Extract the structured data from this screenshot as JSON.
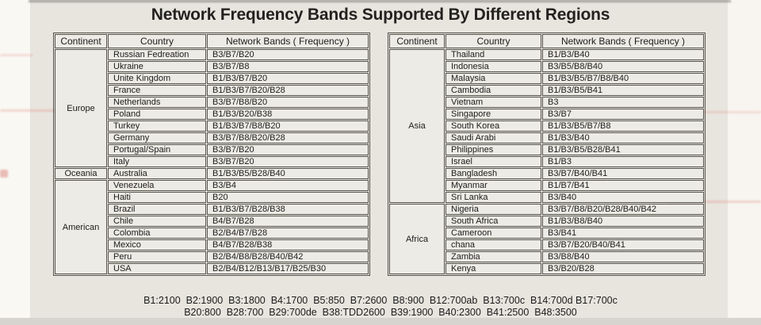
{
  "title": "Network Frequency Bands Supported By Different Regions",
  "table_headers": [
    "Continent",
    "Country",
    "Network Bands ( Frequency )"
  ],
  "left_table": {
    "groups": [
      {
        "continent": "Europe",
        "rows": [
          [
            "Russian Fedreation",
            "B3/B7/B20"
          ],
          [
            "Ukraine",
            "B3/B7/B8"
          ],
          [
            "Unite Kingdom",
            "B1/B3/B7/B20"
          ],
          [
            "France",
            "B1/B3/B7/B20/B28"
          ],
          [
            "Netherlands",
            "B3/B7/B8/B20"
          ],
          [
            "Poland",
            "B1/B3/B20/B38"
          ],
          [
            "Turkey",
            "B1/B3/B7/B8/B20"
          ],
          [
            "Germany",
            "B3/B7/B8/B20/B28"
          ],
          [
            "Portugal/Spain",
            "B3/B7/B20"
          ],
          [
            "Italy",
            "B3/B7/B20"
          ]
        ]
      },
      {
        "continent": "Oceania",
        "rows": [
          [
            "Australia",
            "B1/B3/B5/B28/B40"
          ]
        ]
      },
      {
        "continent": "American",
        "rows": [
          [
            "Venezuela",
            "B3/B4"
          ],
          [
            "Haiti",
            "B20"
          ],
          [
            "Brazil",
            "B1/B3/B7/B28/B38"
          ],
          [
            "Chile",
            "B4/B7/B28"
          ],
          [
            "Colombia",
            "B2/B4/B7/B28"
          ],
          [
            "Mexico",
            "B4/B7/B28/B38"
          ],
          [
            "Peru",
            "B2/B4/B8/B28/B40/B42"
          ],
          [
            "USA",
            "B2/B4/B12/B13/B17/B25/B30"
          ]
        ]
      }
    ]
  },
  "right_table": {
    "groups": [
      {
        "continent": "Asia",
        "rows": [
          [
            "Thailand",
            "B1/B3/B40"
          ],
          [
            "Indonesia",
            "B3/B5/B8/B40"
          ],
          [
            "Malaysia",
            "B1/B3/B5/B7/B8/B40"
          ],
          [
            "Cambodia",
            "B1/B3/B5/B41"
          ],
          [
            "Vietnam",
            "B3"
          ],
          [
            "Singapore",
            "B3/B7"
          ],
          [
            "South Korea",
            "B1/B3/B5/B7/B8"
          ],
          [
            "Saudi Arabi",
            "B1/B3/B40"
          ],
          [
            "Philippines",
            "B1/B3/B5/B28/B41"
          ],
          [
            "Israel",
            "B1/B3"
          ],
          [
            "Bangladesh",
            "B3/B7/B40/B41"
          ],
          [
            "Myanmar",
            "B1/B7/B41"
          ],
          [
            "Sri Lanka",
            "B3/B40"
          ]
        ]
      },
      {
        "continent": "Africa",
        "rows": [
          [
            "Nigeria",
            "B3/B7/B8/B20/B28/B40/B42"
          ],
          [
            "South Africa",
            "B1/B3/B8/B40"
          ],
          [
            "Cameroon",
            "B3/B41"
          ],
          [
            "chana",
            "B3/B7/B20/B40/B41"
          ],
          [
            "Zambia",
            "B3/B8/B40"
          ],
          [
            "Kenya",
            "B3/B20/B28"
          ]
        ]
      }
    ]
  },
  "footnote": {
    "line1": "B1:2100  B2:1900  B3:1800  B4:1700  B5:850  B7:2600  B8:900  B12:700ab  B13:700c  B14:700d B17:700c",
    "line2": "B20:800  B28:700  B29:700de  B38:TDD2600  B39:1900  B40:2300  B41:2500  B48:3500"
  },
  "colors": {
    "background": "#e8e5df",
    "cell_fill": "#edebe5",
    "border": "#56534d",
    "text": "#1d1c1a",
    "margin_strip": "#faf8f3",
    "bottom_strip": "#d7d4cf"
  }
}
